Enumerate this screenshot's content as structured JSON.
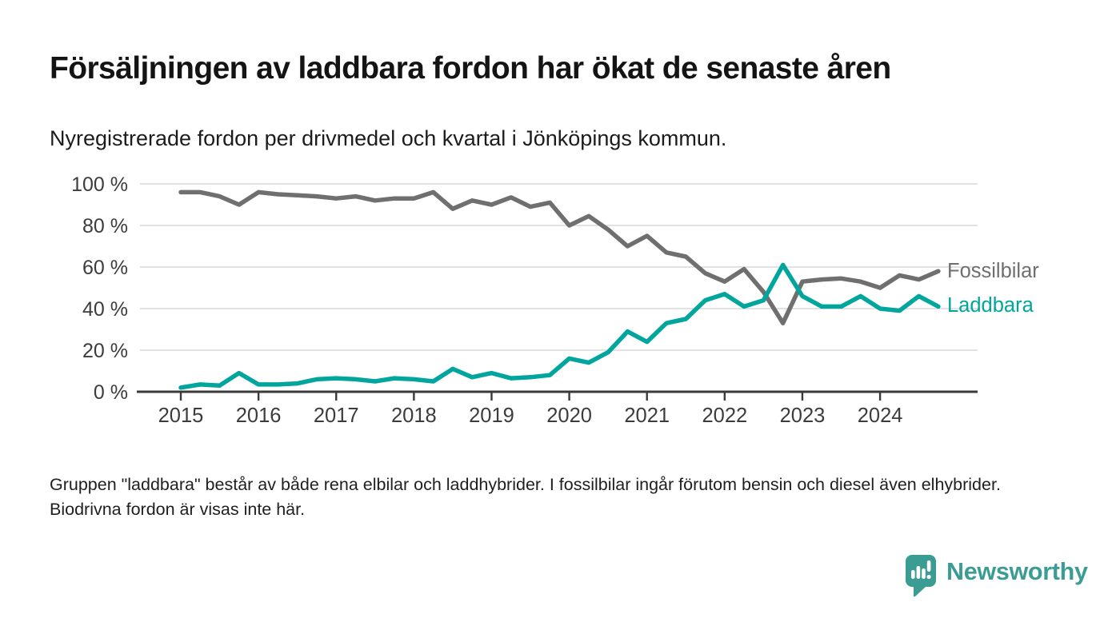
{
  "header": {
    "title": "Försäljningen av laddbara fordon har ökat de senaste åren",
    "subtitle": "Nyregistrerade fordon per drivmedel och kvartal i Jönköpings kommun."
  },
  "footnote": "Gruppen \"laddbara\" består av både rena elbilar och laddhybrider. I fossilbilar ingår förutom bensin och diesel även elhybrider. Biodrivna fordon är visas inte här.",
  "brand": {
    "name": "Newsworthy",
    "color": "#3b9c94",
    "icon": "bar-chart-speech-bubble-icon"
  },
  "chart_data": {
    "type": "line",
    "title": "Försäljningen av laddbara fordon har ökat de senaste åren",
    "subtitle": "Nyregistrerade fordon per drivmedel och kvartal i Jönköpings kommun.",
    "x_unit": "quarter",
    "x": [
      "2015 Q1",
      "2015 Q2",
      "2015 Q3",
      "2015 Q4",
      "2016 Q1",
      "2016 Q2",
      "2016 Q3",
      "2016 Q4",
      "2017 Q1",
      "2017 Q2",
      "2017 Q3",
      "2017 Q4",
      "2018 Q1",
      "2018 Q2",
      "2018 Q3",
      "2018 Q4",
      "2019 Q1",
      "2019 Q2",
      "2019 Q3",
      "2019 Q4",
      "2020 Q1",
      "2020 Q2",
      "2020 Q3",
      "2020 Q4",
      "2021 Q1",
      "2021 Q2",
      "2021 Q3",
      "2021 Q4",
      "2022 Q1",
      "2022 Q2",
      "2022 Q3",
      "2022 Q4",
      "2023 Q1",
      "2023 Q2",
      "2023 Q3",
      "2023 Q4",
      "2024 Q1",
      "2024 Q2",
      "2024 Q3",
      "2024 Q4"
    ],
    "series": [
      {
        "name": "Fossilbilar",
        "color": "#6f6f6f",
        "values": [
          96,
          96,
          94,
          90,
          96,
          95,
          94.5,
          94,
          93,
          94,
          92,
          93,
          93,
          96,
          88,
          92,
          90,
          93.5,
          89,
          91,
          80,
          84.5,
          78,
          70,
          75,
          67,
          65,
          57,
          53,
          59,
          48,
          33,
          53,
          54,
          54.5,
          53,
          50,
          56,
          54,
          58
        ]
      },
      {
        "name": "Laddbara",
        "color": "#00a69d",
        "values": [
          2,
          3.5,
          3,
          9,
          3.5,
          3.5,
          4,
          6,
          6.5,
          6,
          5,
          6.5,
          6,
          5,
          11,
          7,
          9,
          6.5,
          7,
          8,
          16,
          14,
          19,
          29,
          24,
          33,
          35,
          44,
          47,
          41,
          44,
          61,
          46,
          41,
          41,
          46,
          40,
          39,
          46,
          41
        ]
      }
    ],
    "x_tick_labels": [
      "2015",
      "2016",
      "2017",
      "2018",
      "2019",
      "2020",
      "2021",
      "2022",
      "2023",
      "2024"
    ],
    "y_tick_labels": [
      "0 %",
      "20 %",
      "40 %",
      "60 %",
      "80 %",
      "100 %"
    ],
    "ylim": [
      0,
      100
    ],
    "grid": "horizontal",
    "legend_position": "right-end-of-lines",
    "axis_color": "#3a3a3a",
    "grid_color": "#d8d8d8",
    "tick_label_color": "#3c3c3c"
  }
}
